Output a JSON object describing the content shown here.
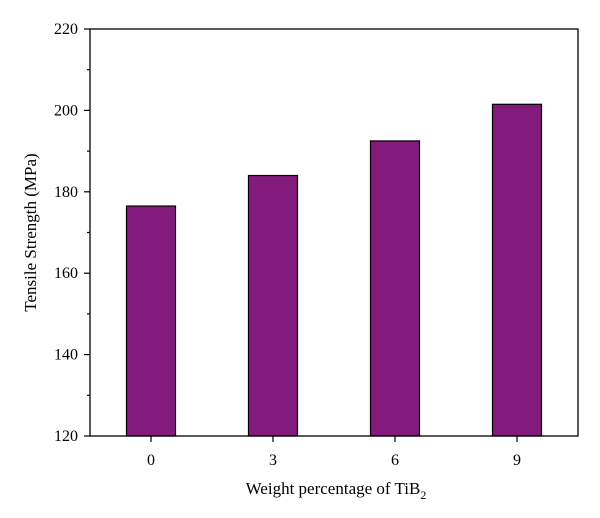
{
  "chart_data": {
    "type": "bar",
    "title": "",
    "xlabel": {
      "text": "Weight percentage of TiB",
      "subscript": "2"
    },
    "ylabel": "Tensile Strength (MPa)",
    "categories": [
      "0",
      "3",
      "6",
      "9"
    ],
    "values": [
      176.5,
      184,
      192.5,
      201.5
    ],
    "ylim": [
      120,
      220
    ],
    "yticks": [
      "120",
      "140",
      "160",
      "180",
      "200",
      "220"
    ],
    "bar_color": "#821b7c",
    "grid": false,
    "legend": "none"
  }
}
